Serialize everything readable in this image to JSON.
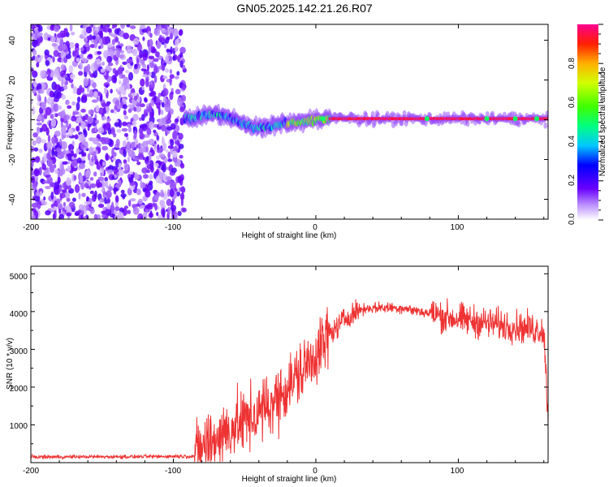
{
  "title": "GN05.2025.142.21.26.R07",
  "chart_data": [
    {
      "type": "heatmap",
      "xlabel": "Height of straight line (km)",
      "ylabel": "Frequency (Hz)",
      "xlim": [
        -200,
        163
      ],
      "ylim": [
        -50,
        48
      ],
      "x_ticks": [
        "-200",
        "-100",
        "0",
        "100"
      ],
      "y_ticks": [
        "40",
        "20",
        "0",
        "-20",
        "-40"
      ],
      "colorbar": {
        "label": "Normalized spectral amplitude",
        "range": [
          0,
          1
        ],
        "ticks": [
          "0.0",
          "0.2",
          "0.4",
          "0.6",
          "0.8"
        ]
      },
      "regions": [
        {
          "x_start": -200,
          "x_end": -92,
          "description": "noise",
          "amplitude": 0.05
        },
        {
          "x_start": -92,
          "x_end": -20,
          "center_hz": [
            0,
            2,
            3,
            1,
            -2,
            -4,
            -3,
            -1
          ],
          "amplitude": 0.35
        },
        {
          "x_start": -20,
          "x_end": 10,
          "center_hz": [
            -2,
            -1,
            0,
            1
          ],
          "amplitude": 0.6
        },
        {
          "x_start": 10,
          "x_end": 163,
          "center_hz": 0.5,
          "amplitude": 0.95
        }
      ]
    },
    {
      "type": "line",
      "xlabel": "Height of straight line (km)",
      "ylabel": "SNR (10 * v/v)",
      "xlim": [
        -200,
        163
      ],
      "ylim": [
        0,
        5200
      ],
      "x_ticks": [
        "-200",
        "-100",
        "0",
        "100"
      ],
      "y_ticks": [
        "5000",
        "4000",
        "3000",
        "2000",
        "1000"
      ],
      "color": "#ee3333",
      "series": [
        {
          "name": "SNR",
          "x": [
            -200,
            -120,
            -85,
            -80,
            -70,
            -60,
            -50,
            -40,
            -30,
            -20,
            -10,
            0,
            10,
            20,
            30,
            40,
            60,
            80,
            100,
            120,
            140,
            160,
            163
          ],
          "y": [
            150,
            160,
            170,
            400,
            650,
            900,
            1100,
            1300,
            1600,
            2000,
            2400,
            2900,
            3400,
            3800,
            4050,
            4100,
            4100,
            3950,
            3800,
            3700,
            3600,
            3500,
            1200
          ]
        }
      ]
    }
  ]
}
